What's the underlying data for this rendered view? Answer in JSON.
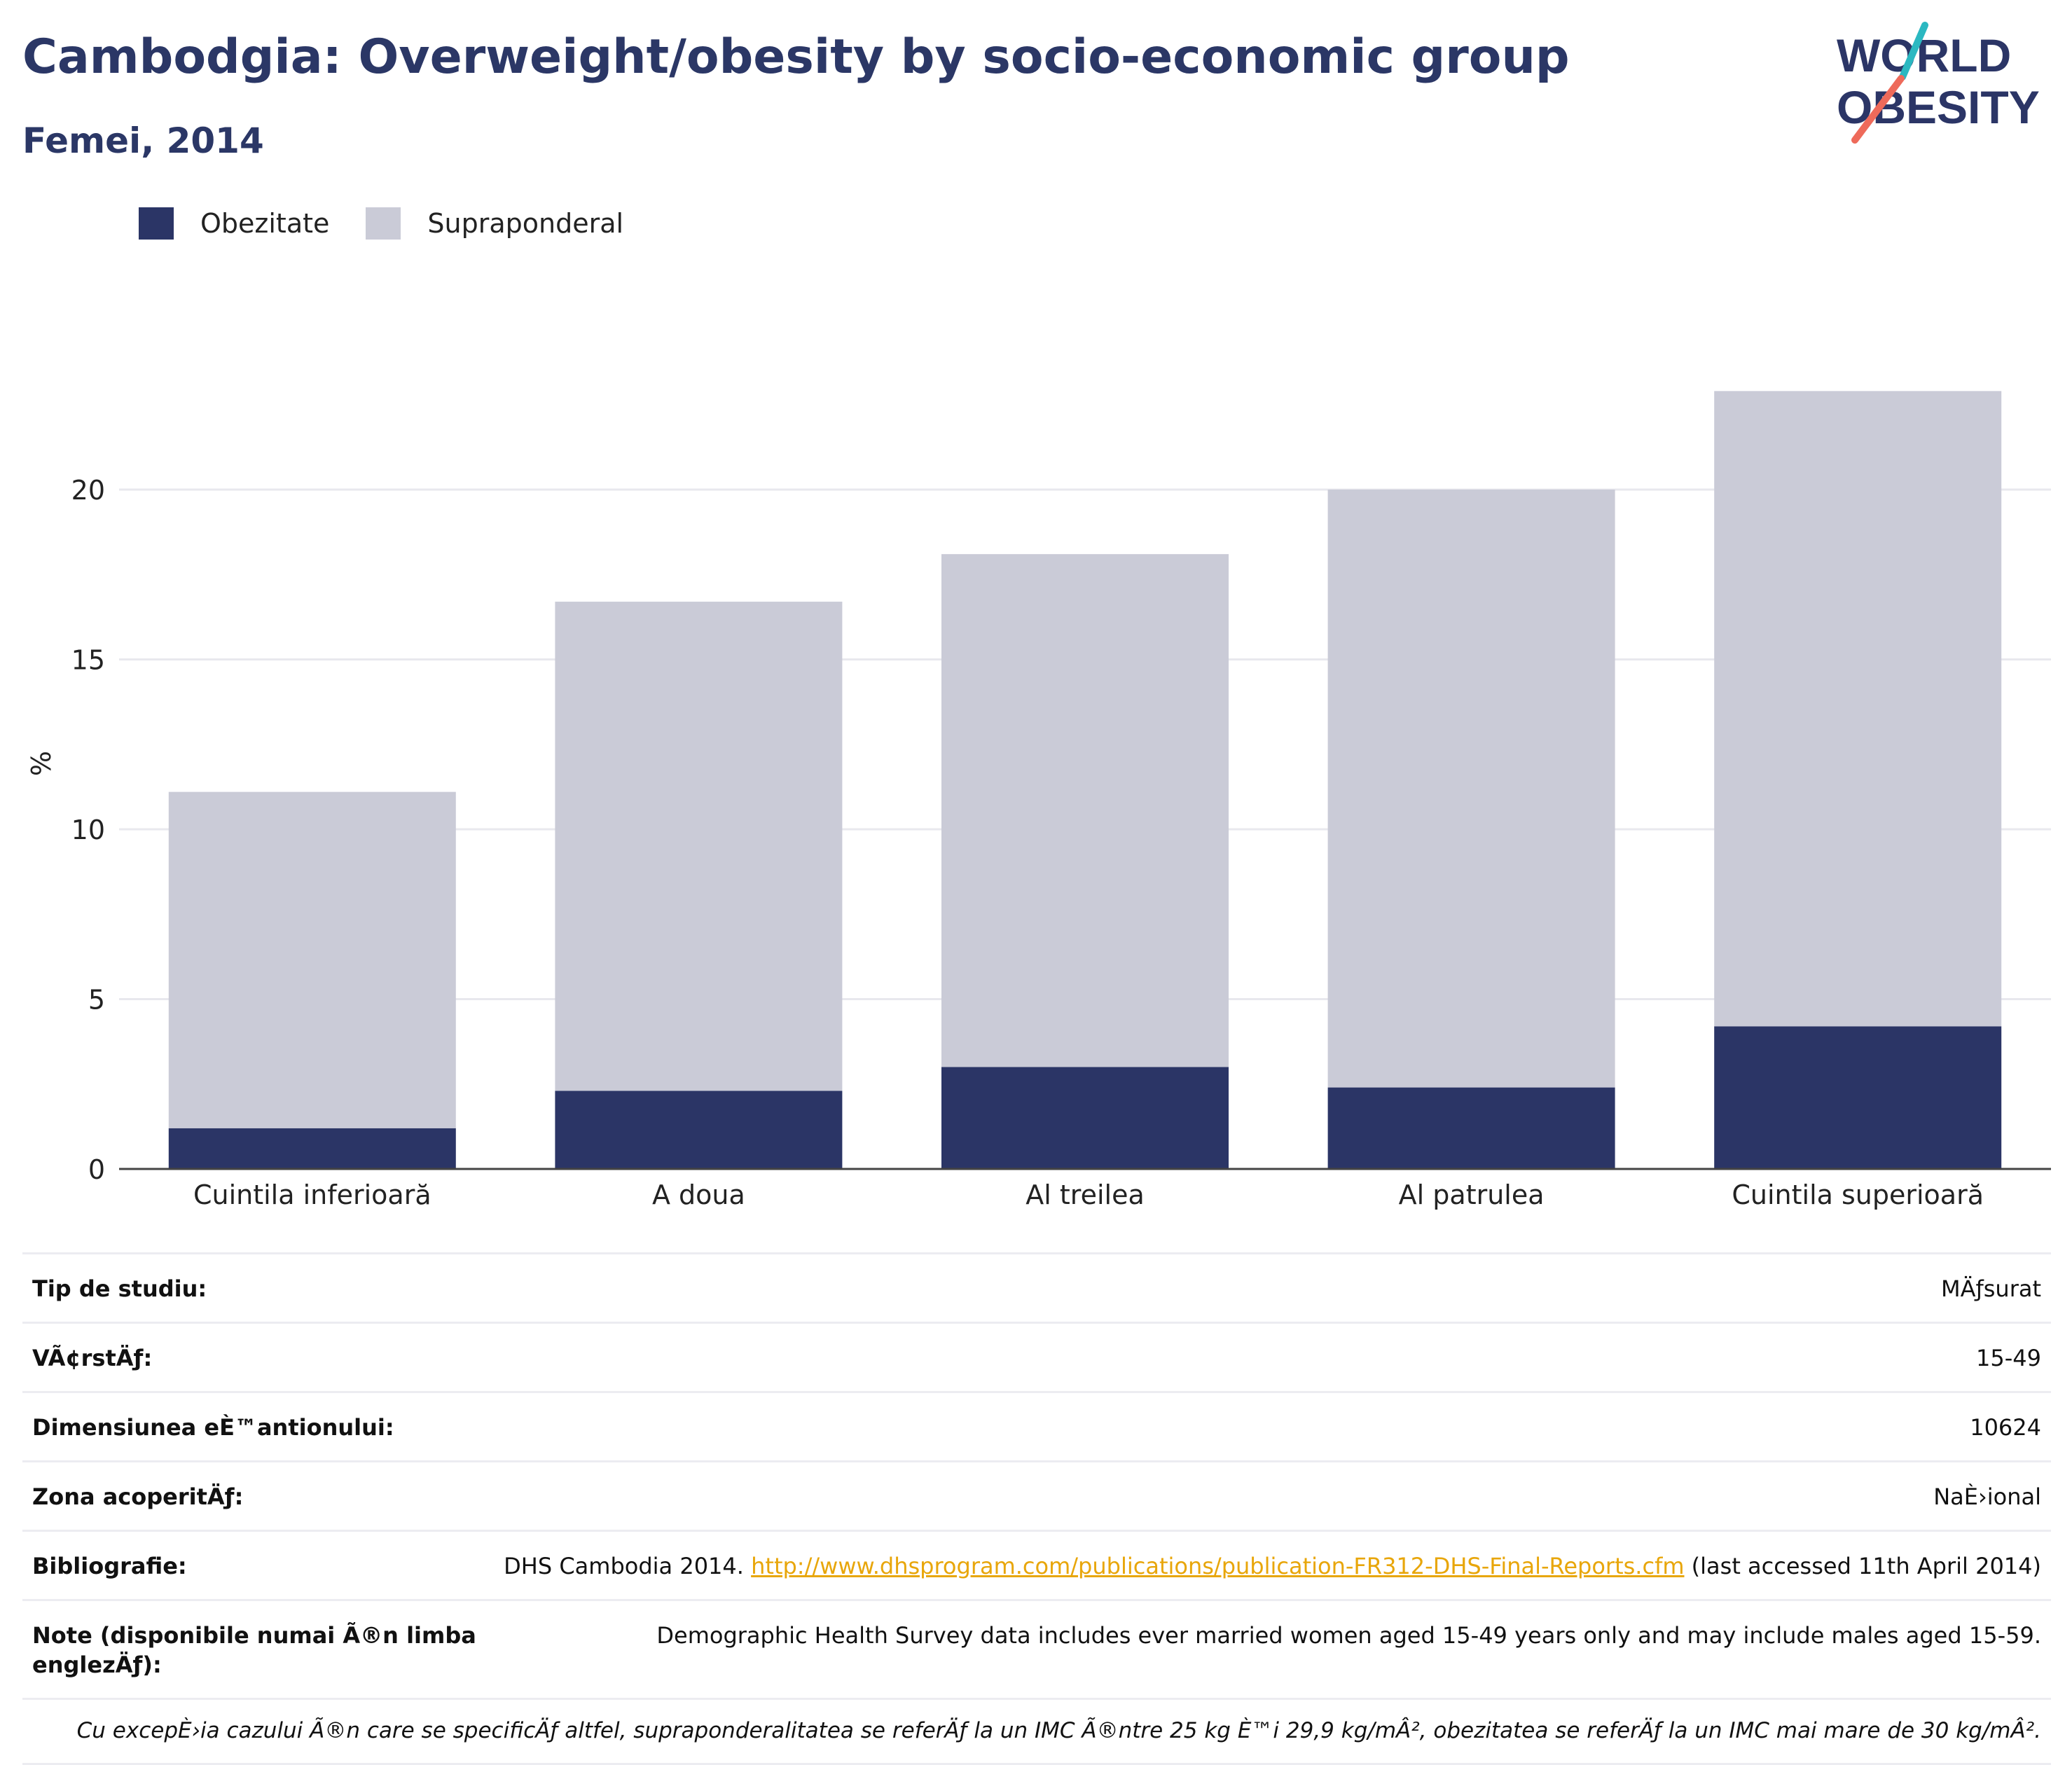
{
  "header": {
    "title": "Cambodgia: Overweight/obesity by socio-economic group",
    "subtitle": "Femei, 2014",
    "logo_line1": "WORLD",
    "logo_line2": "OBESITY"
  },
  "colors": {
    "obesity": "#2b3566",
    "overweight": "#cacbd7",
    "grid": "#e8e8ee",
    "axis": "#444444",
    "link": "#e8a60a"
  },
  "legend": [
    {
      "label": "Obezitate",
      "color": "#2b3566"
    },
    {
      "label": "Supraponderal",
      "color": "#cacbd7"
    }
  ],
  "chart_data": {
    "type": "bar",
    "stacked": true,
    "categories": [
      "Cuintila inferioară",
      "A doua",
      "Al treilea",
      "Al patrulea",
      "Cuintila superioară"
    ],
    "series": [
      {
        "name": "Obezitate",
        "values": [
          1.2,
          2.3,
          3.0,
          2.4,
          4.2
        ]
      },
      {
        "name": "Supraponderal",
        "values": [
          9.9,
          14.4,
          15.1,
          17.6,
          18.7
        ]
      }
    ],
    "totals": [
      11.1,
      16.7,
      18.1,
      20.0,
      22.9
    ],
    "ylabel": "%",
    "ylim": [
      0,
      25
    ],
    "yticks": [
      0,
      5,
      10,
      15,
      20
    ],
    "grid": true,
    "legend_position": "top-left"
  },
  "info": {
    "rows": [
      {
        "label": "Tip de studiu:",
        "value": "MÄƒsurat"
      },
      {
        "label": "VÃ¢rstÄƒ:",
        "value": "15-49"
      },
      {
        "label": "Dimensiunea eÈ™antionului:",
        "value": "10624"
      },
      {
        "label": "Zona acoperitÄƒ:",
        "value": "NaÈ›ional"
      }
    ],
    "bibliography": {
      "label": "Bibliografie:",
      "prefix": "DHS Cambodia 2014. ",
      "link": "http://www.dhsprogram.com/publications/publication-FR312-DHS-Final-Reports.cfm",
      "suffix": " (last accessed 11th April 2014)"
    },
    "notes": {
      "label": "Note (disponibile numai Ã®n limba englezÄƒ):",
      "value": "Demographic Health Survey data includes ever married women aged 15-49 years only and may include males aged 15-59."
    },
    "footnote": "Cu excepÈ›ia cazului Ã®n care se specificÄƒ altfel, supraponderalitatea se referÄƒ la un IMC Ã®ntre 25 kg È™i 29,9 kg/mÂ², obezitatea se referÄƒ la un IMC mai mare de 30 kg/mÂ²."
  }
}
